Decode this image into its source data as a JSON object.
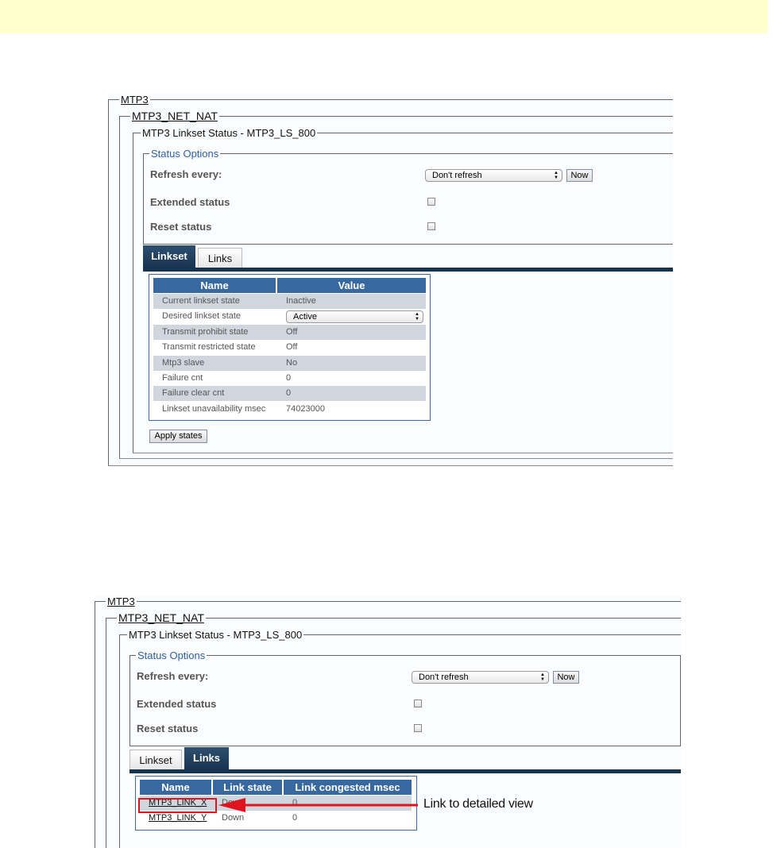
{
  "colors": {
    "band": "#ffffcc",
    "header_blue": "#3868a0",
    "tab_active": "#17344f",
    "legend_blue": "#2f5f9c",
    "callout_red": "#e0141e"
  },
  "screens": [
    {
      "breadcrumb": [
        "MTP3",
        "MTP3_NET_NAT"
      ],
      "section_title": "MTP3 Linkset Status - MTP3_LS_800",
      "status_options": {
        "legend": "Status Options",
        "refresh_label": "Refresh every:",
        "refresh_value": "Don't refresh",
        "now_button": "Now",
        "extended_label": "Extended status",
        "extended_checked": false,
        "reset_label": "Reset status",
        "reset_checked": false
      },
      "tabs": [
        {
          "label": "Linkset",
          "active": true
        },
        {
          "label": "Links",
          "active": false
        }
      ],
      "table": {
        "headers": [
          "Name",
          "Value"
        ],
        "rows": [
          [
            "Current linkset state",
            "Inactive"
          ],
          [
            "Desired linkset state",
            "Active"
          ],
          [
            "Transmit prohibit state",
            "Off"
          ],
          [
            "Transmit restricted state",
            "Off"
          ],
          [
            "Mtp3 slave",
            "No"
          ],
          [
            "Failure cnt",
            "0"
          ],
          [
            "Failure clear cnt",
            "0"
          ],
          [
            "Linkset unavailability msec",
            "74023000"
          ]
        ]
      },
      "apply_button": "Apply states"
    },
    {
      "breadcrumb": [
        "MTP3",
        "MTP3_NET_NAT"
      ],
      "section_title": "MTP3 Linkset Status - MTP3_LS_800",
      "status_options": {
        "legend": "Status Options",
        "refresh_label": "Refresh every:",
        "refresh_value": "Don't refresh",
        "now_button": "Now",
        "extended_label": "Extended status",
        "extended_checked": false,
        "reset_label": "Reset status",
        "reset_checked": false
      },
      "tabs": [
        {
          "label": "Linkset",
          "active": false
        },
        {
          "label": "Links",
          "active": true
        }
      ],
      "table": {
        "headers": [
          "Name",
          "Link state",
          "Link congested msec"
        ],
        "rows": [
          [
            "MTP3_LINK_X",
            "Down",
            "0"
          ],
          [
            "MTP3_LINK_Y",
            "Down",
            "0"
          ]
        ]
      },
      "callout": "Link to detailed view"
    }
  ]
}
